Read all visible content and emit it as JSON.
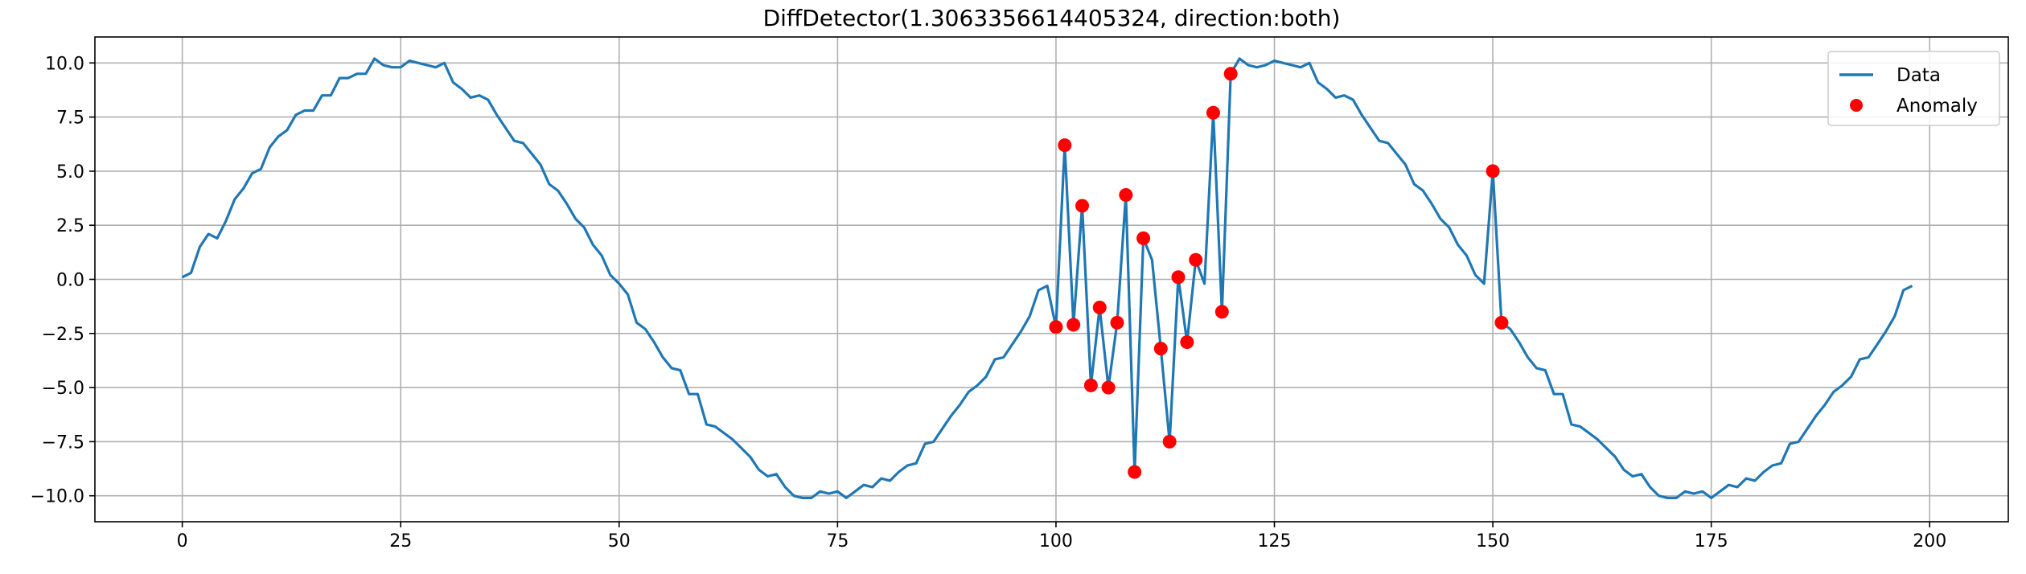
{
  "chart_data": {
    "type": "line",
    "title": "DiffDetector(1.3063356614405324, direction:both)",
    "xlabel": "",
    "ylabel": "",
    "xlim": [
      -10,
      209
    ],
    "ylim": [
      -11.2,
      11.2
    ],
    "xticks": [
      0,
      25,
      50,
      75,
      100,
      125,
      150,
      175,
      200
    ],
    "yticks": [
      -10.0,
      -7.5,
      -5.0,
      -2.5,
      0.0,
      2.5,
      5.0,
      7.5,
      10.0
    ],
    "xtick_labels": [
      "0",
      "25",
      "50",
      "75",
      "100",
      "125",
      "150",
      "175",
      "200"
    ],
    "ytick_labels": [
      "−10.0",
      "−7.5",
      "−5.0",
      "−2.5",
      "0.0",
      "2.5",
      "5.0",
      "7.5",
      "10.0"
    ],
    "grid": true,
    "legend_position": "top-right",
    "series": [
      {
        "name": "Data",
        "kind": "line",
        "color": "#1f77b4",
        "x": [
          0,
          1,
          2,
          3,
          4,
          5,
          6,
          7,
          8,
          9,
          10,
          11,
          12,
          13,
          14,
          15,
          16,
          17,
          18,
          19,
          20,
          21,
          22,
          23,
          24,
          25,
          26,
          27,
          28,
          29,
          30,
          31,
          32,
          33,
          34,
          35,
          36,
          37,
          38,
          39,
          40,
          41,
          42,
          43,
          44,
          45,
          46,
          47,
          48,
          49,
          50,
          51,
          52,
          53,
          54,
          55,
          56,
          57,
          58,
          59,
          60,
          61,
          62,
          63,
          64,
          65,
          66,
          67,
          68,
          69,
          70,
          71,
          72,
          73,
          74,
          75,
          76,
          77,
          78,
          79,
          80,
          81,
          82,
          83,
          84,
          85,
          86,
          87,
          88,
          89,
          90,
          91,
          92,
          93,
          94,
          95,
          96,
          97,
          98,
          99,
          100,
          101,
          102,
          103,
          104,
          105,
          106,
          107,
          108,
          109,
          110,
          111,
          112,
          113,
          114,
          115,
          116,
          117,
          118,
          119,
          120,
          121,
          122,
          123,
          124,
          125,
          126,
          127,
          128,
          129,
          130,
          131,
          132,
          133,
          134,
          135,
          136,
          137,
          138,
          139,
          140,
          141,
          142,
          143,
          144,
          145,
          146,
          147,
          148,
          149,
          150,
          151,
          152,
          153,
          154,
          155,
          156,
          157,
          158,
          159,
          160,
          161,
          162,
          163,
          164,
          165,
          166,
          167,
          168,
          169,
          170,
          171,
          172,
          173,
          174,
          175,
          176,
          177,
          178,
          179,
          180,
          181,
          182,
          183,
          184,
          185,
          186,
          187,
          188,
          189,
          190,
          191,
          192,
          193,
          194,
          195,
          196,
          197,
          198
        ],
        "y": [
          0.1,
          0.3,
          1.5,
          2.1,
          1.9,
          2.7,
          3.7,
          4.2,
          4.9,
          5.1,
          6.1,
          6.6,
          6.9,
          7.6,
          7.8,
          7.8,
          8.5,
          8.5,
          9.3,
          9.3,
          9.5,
          9.5,
          10.2,
          9.9,
          9.8,
          9.8,
          10.1,
          10.0,
          9.9,
          9.8,
          10.0,
          9.1,
          8.8,
          8.4,
          8.5,
          8.3,
          7.6,
          7.0,
          6.4,
          6.3,
          5.8,
          5.3,
          4.4,
          4.1,
          3.5,
          2.8,
          2.4,
          1.6,
          1.1,
          0.2,
          -0.2,
          -0.7,
          -2.0,
          -2.3,
          -2.9,
          -3.6,
          -4.1,
          -4.2,
          -5.3,
          -5.3,
          -6.7,
          -6.8,
          -7.1,
          -7.4,
          -7.8,
          -8.2,
          -8.8,
          -9.1,
          -9.0,
          -9.6,
          -10.0,
          -10.1,
          -10.1,
          -9.8,
          -9.9,
          -9.8,
          -10.1,
          -9.8,
          -9.5,
          -9.6,
          -9.2,
          -9.3,
          -8.9,
          -8.6,
          -8.5,
          -7.6,
          -7.5,
          -6.9,
          -6.3,
          -5.8,
          -5.2,
          -4.9,
          -4.5,
          -3.7,
          -3.6,
          -3.0,
          -2.4,
          -1.7,
          -0.5,
          -0.3,
          -2.2,
          6.2,
          -2.1,
          3.4,
          -4.9,
          -1.3,
          -5.0,
          -2.0,
          3.9,
          -8.9,
          1.9,
          0.9,
          -3.2,
          -7.5,
          0.1,
          -2.9,
          0.9,
          -0.2,
          7.7,
          -1.5,
          9.5,
          10.2,
          9.9,
          9.8,
          9.9,
          10.1,
          10.0,
          9.9,
          9.8,
          10.0,
          9.1,
          8.8,
          8.4,
          8.5,
          8.3,
          7.6,
          7.0,
          6.4,
          6.3,
          5.8,
          5.3,
          4.4,
          4.1,
          3.5,
          2.8,
          2.4,
          1.6,
          1.1,
          0.2,
          -0.2,
          5.0,
          -2.0,
          -2.3,
          -2.9,
          -3.6,
          -4.1,
          -4.2,
          -5.3,
          -5.3,
          -6.7,
          -6.8,
          -7.1,
          -7.4,
          -7.8,
          -8.2,
          -8.8,
          -9.1,
          -9.0,
          -9.6,
          -10.0,
          -10.1,
          -10.1,
          -9.8,
          -9.9,
          -9.8,
          -10.1,
          -9.8,
          -9.5,
          -9.6,
          -9.2,
          -9.3,
          -8.9,
          -8.6,
          -8.5,
          -7.6,
          -7.5,
          -6.9,
          -6.3,
          -5.8,
          -5.2,
          -4.9,
          -4.5,
          -3.7,
          -3.6,
          -3.0,
          -2.4,
          -1.7,
          -0.5,
          -0.3
        ]
      },
      {
        "name": "Anomaly",
        "kind": "scatter",
        "color": "#ff0000",
        "x": [
          100,
          101,
          102,
          103,
          104,
          105,
          106,
          107,
          108,
          109,
          110,
          112,
          113,
          114,
          115,
          116,
          118,
          119,
          120,
          150,
          151
        ],
        "y": [
          -2.2,
          6.2,
          -2.1,
          3.4,
          -4.9,
          -1.3,
          -5.0,
          -2.0,
          3.9,
          -8.9,
          1.9,
          -3.2,
          -7.5,
          0.1,
          -2.9,
          0.9,
          7.7,
          -1.5,
          9.5,
          5.0,
          -2.0
        ]
      }
    ]
  }
}
